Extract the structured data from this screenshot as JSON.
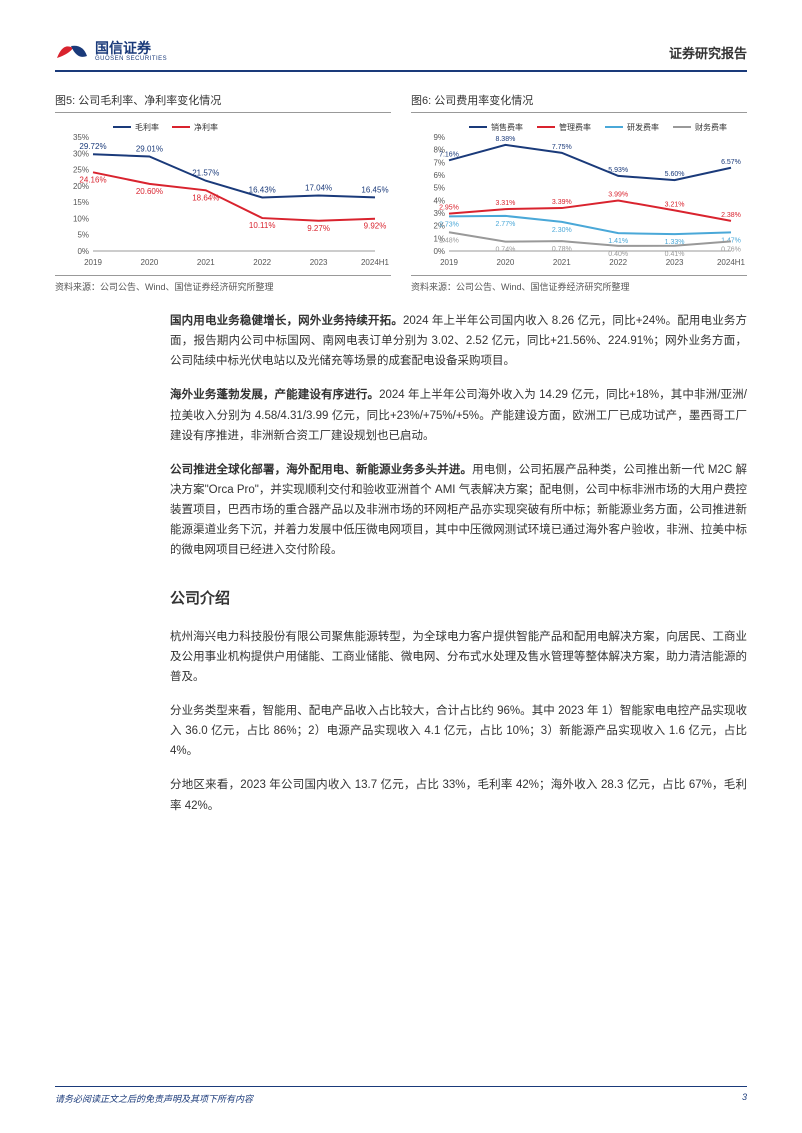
{
  "header": {
    "logo_cn": "国信证券",
    "logo_en": "GUOSEN SECURITIES",
    "report_type": "证券研究报告"
  },
  "chart5": {
    "title": "图5: 公司毛利率、净利率变化情况",
    "type": "line",
    "categories": [
      "2019",
      "2020",
      "2021",
      "2022",
      "2023",
      "2024H1"
    ],
    "series": [
      {
        "name": "毛利率",
        "color": "#1a3a7a",
        "values": [
          29.72,
          29.01,
          21.57,
          16.43,
          17.04,
          16.45
        ],
        "labels": [
          "29.72%",
          "29.01%",
          "21.57%",
          "16.43%",
          "17.04%",
          "16.45%"
        ]
      },
      {
        "name": "净利率",
        "color": "#d9232e",
        "values": [
          24.16,
          20.6,
          18.64,
          10.11,
          9.27,
          9.92
        ],
        "labels": [
          "24.16%",
          "20.60%",
          "18.64%",
          "10.11%",
          "9.27%",
          "9.92%"
        ]
      }
    ],
    "ylim": [
      0,
      35
    ],
    "ytick_step": 5,
    "yformat": "%",
    "background_color": "#ffffff",
    "grid": false,
    "label_fontsize": 8,
    "line_width": 2,
    "source": "资料来源：公司公告、Wind、国信证券经济研究所整理"
  },
  "chart6": {
    "title": "图6: 公司费用率变化情况",
    "type": "line",
    "categories": [
      "2019",
      "2020",
      "2021",
      "2022",
      "2023",
      "2024H1"
    ],
    "series": [
      {
        "name": "销售费率",
        "color": "#1a3a7a",
        "values": [
          7.16,
          8.38,
          7.75,
          5.93,
          5.6,
          6.57
        ],
        "labels": [
          "7.16%",
          "8.38%",
          "7.75%",
          "5.93%",
          "5.60%",
          "6.57%"
        ]
      },
      {
        "name": "管理费率",
        "color": "#d9232e",
        "values": [
          2.95,
          3.31,
          3.39,
          3.99,
          3.21,
          2.38
        ],
        "labels": [
          "2.95%",
          "3.31%",
          "3.39%",
          "3.99%",
          "3.21%",
          "2.38%"
        ]
      },
      {
        "name": "研发费率",
        "color": "#4aa8d8",
        "values": [
          2.73,
          2.77,
          2.3,
          1.41,
          1.33,
          1.47
        ],
        "labels": [
          "2.73%",
          "2.77%",
          "2.30%",
          "1.41%",
          "1.33%",
          "1.47%"
        ]
      },
      {
        "name": "财务费率",
        "color": "#999999",
        "values": [
          1.48,
          0.74,
          0.78,
          0.4,
          0.41,
          0.76
        ],
        "labels": [
          "1.48%",
          "0.74%",
          "0.78%",
          "0.40%",
          "0.41%",
          "0.76%"
        ]
      }
    ],
    "ylim": [
      0,
      9
    ],
    "ytick_step": 1,
    "yformat": "%",
    "background_color": "#ffffff",
    "grid": false,
    "label_fontsize": 7,
    "line_width": 2,
    "source": "资料来源：公司公告、Wind、国信证券经济研究所整理"
  },
  "paragraphs": {
    "p1_lead": "国内用电业务稳健增长，网外业务持续开拓。",
    "p1_body": "2024 年上半年公司国内收入 8.26 亿元，同比+24%。配用电业务方面，报告期内公司中标国网、南网电表订单分别为 3.02、2.52 亿元，同比+21.56%、224.91%；网外业务方面，公司陆续中标光伏电站以及光储充等场景的成套配电设备采购项目。",
    "p2_lead": "海外业务蓬勃发展，产能建设有序进行。",
    "p2_body": "2024 年上半年公司海外收入为 14.29 亿元，同比+18%，其中非洲/亚洲/拉美收入分别为 4.58/4.31/3.99 亿元，同比+23%/+75%/+5%。产能建设方面，欧洲工厂已成功试产，墨西哥工厂建设有序推进，非洲新合资工厂建设规划也已启动。",
    "p3_lead": "公司推进全球化部署，海外配用电、新能源业务多头并进。",
    "p3_body": "用电侧，公司拓展产品种类，公司推出新一代 M2C 解决方案\"Orca Pro\"，并实现顺利交付和验收亚洲首个 AMI 气表解决方案；配电侧，公司中标非洲市场的大用户费控装置项目，巴西市场的重合器产品以及非洲市场的环网柜产品亦实现突破有所中标；新能源业务方面，公司推进新能源渠道业务下沉，并着力发展中低压微电网项目，其中中压微网测试环境已通过海外客户验收，非洲、拉美中标的微电网项目已经进入交付阶段。",
    "section_title": "公司介绍",
    "p4": "杭州海兴电力科技股份有限公司聚焦能源转型，为全球电力客户提供智能产品和配用电解决方案，向居民、工商业及公用事业机构提供户用储能、工商业储能、微电网、分布式水处理及售水管理等整体解决方案，助力清洁能源的普及。",
    "p5": "分业务类型来看，智能用、配电产品收入占比较大，合计占比约 96%。其中 2023 年 1）智能家电电控产品实现收入 36.0 亿元，占比 86%；2）电源产品实现收入 4.1 亿元，占比 10%；3）新能源产品实现收入 1.6 亿元，占比 4%。",
    "p6": "分地区来看，2023 年公司国内收入 13.7 亿元，占比 33%，毛利率 42%；海外收入 28.3 亿元，占比 67%，毛利率 42%。"
  },
  "footer": {
    "disclaimer": "请务必阅读正文之后的免责声明及其项下所有内容",
    "page": "3"
  }
}
